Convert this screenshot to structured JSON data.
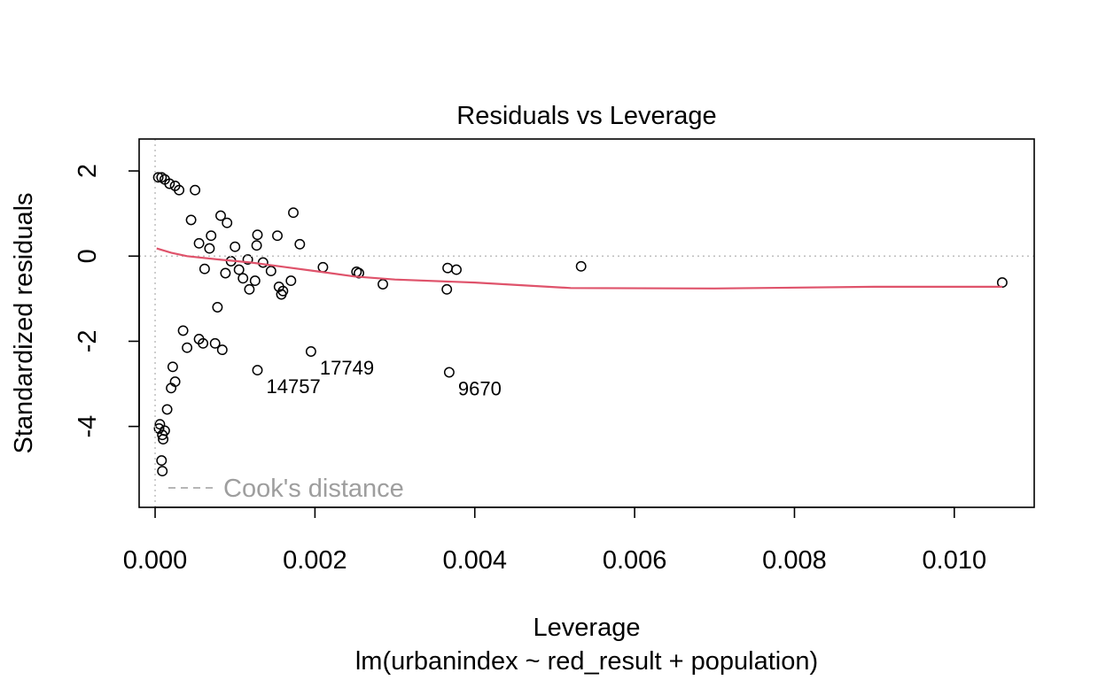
{
  "chart_data": {
    "type": "scatter",
    "title": "Residuals vs Leverage",
    "xlabel": "Leverage",
    "ylabel": "Standardized residuals",
    "subtitle": "lm(urbanindex ~ red_result + population)",
    "xlim": [
      -0.0002,
      0.011
    ],
    "ylim": [
      -5.9,
      2.75
    ],
    "x_ticks": [
      0.0,
      0.002,
      0.004,
      0.006,
      0.008,
      0.01
    ],
    "x_tick_labels": [
      "0.000",
      "0.002",
      "0.004",
      "0.006",
      "0.008",
      "0.010"
    ],
    "y_ticks": [
      -4,
      -2,
      0,
      2
    ],
    "y_tick_labels": [
      "-4",
      "-2",
      "0",
      "2"
    ],
    "reference_lines": {
      "h": 0,
      "v": 0
    },
    "legend": {
      "label": "Cook's distance",
      "position": "bottom-left"
    },
    "labeled_points": [
      {
        "label": "17749",
        "x": 0.00195,
        "y": -2.24
      },
      {
        "label": "14757",
        "x": 0.00128,
        "y": -2.68
      },
      {
        "label": "9670",
        "x": 0.00368,
        "y": -2.73
      }
    ],
    "points": [
      [
        0.0106,
        -0.62
      ],
      [
        0.00533,
        -0.24
      ],
      [
        0.00377,
        -0.32
      ],
      [
        0.00366,
        -0.28
      ],
      [
        0.00365,
        -0.78
      ],
      [
        0.00285,
        -0.66
      ],
      [
        0.00255,
        -0.4
      ],
      [
        0.00252,
        -0.37
      ],
      [
        0.0021,
        -0.26
      ],
      [
        0.00181,
        0.28
      ],
      [
        0.00173,
        1.02
      ],
      [
        0.0017,
        -0.58
      ],
      [
        0.0016,
        -0.82
      ],
      [
        0.00158,
        -0.9
      ],
      [
        0.00155,
        -0.72
      ],
      [
        0.00153,
        0.48
      ],
      [
        0.00128,
        0.5
      ],
      [
        0.00127,
        0.25
      ],
      [
        0.00125,
        -0.58
      ],
      [
        0.00118,
        -0.78
      ],
      [
        0.00116,
        -0.08
      ],
      [
        0.0011,
        -0.52
      ],
      [
        0.00105,
        -0.32
      ],
      [
        0.001,
        0.22
      ],
      [
        0.0009,
        0.78
      ],
      [
        0.00088,
        -0.4
      ],
      [
        0.00084,
        -2.2
      ],
      [
        0.00082,
        0.95
      ],
      [
        0.00078,
        -1.2
      ],
      [
        0.00075,
        -2.05
      ],
      [
        0.0007,
        0.48
      ],
      [
        0.00068,
        0.18
      ],
      [
        0.0006,
        -2.05
      ],
      [
        0.00055,
        -1.95
      ],
      [
        0.0005,
        1.55
      ],
      [
        0.00045,
        0.85
      ],
      [
        0.0004,
        -2.15
      ],
      [
        0.00035,
        -1.75
      ],
      [
        0.0003,
        1.55
      ],
      [
        0.00025,
        -2.95
      ],
      [
        0.00022,
        -2.6
      ],
      [
        0.0002,
        -3.1
      ],
      [
        0.00015,
        -3.6
      ],
      [
        0.00012,
        -4.1
      ],
      [
        0.0001,
        -4.3
      ],
      [
        9e-05,
        -4.2
      ],
      [
        8e-05,
        -4.8
      ],
      [
        9e-05,
        -5.05
      ],
      [
        6e-05,
        -3.95
      ],
      [
        5e-05,
        -4.05
      ],
      [
        4e-05,
        1.85
      ],
      [
        8e-05,
        1.85
      ],
      [
        0.00012,
        1.8
      ],
      [
        0.00018,
        1.7
      ],
      [
        0.00025,
        1.65
      ],
      [
        0.00055,
        0.3
      ],
      [
        0.00062,
        -0.3
      ],
      [
        0.00095,
        -0.12
      ],
      [
        0.00135,
        -0.15
      ],
      [
        0.00145,
        -0.35
      ]
    ],
    "smoother": [
      [
        2e-05,
        0.18
      ],
      [
        0.0002,
        0.08
      ],
      [
        0.0004,
        0.0
      ],
      [
        0.0008,
        -0.08
      ],
      [
        0.0012,
        -0.15
      ],
      [
        0.0016,
        -0.25
      ],
      [
        0.002,
        -0.35
      ],
      [
        0.0025,
        -0.48
      ],
      [
        0.003,
        -0.55
      ],
      [
        0.004,
        -0.62
      ],
      [
        0.0052,
        -0.75
      ],
      [
        0.007,
        -0.76
      ],
      [
        0.009,
        -0.72
      ],
      [
        0.0106,
        -0.72
      ]
    ],
    "colors": {
      "smoother": "#DF536B",
      "reference": "#BEBEBE",
      "legend": "#9E9E9E",
      "points": "#000000"
    }
  }
}
